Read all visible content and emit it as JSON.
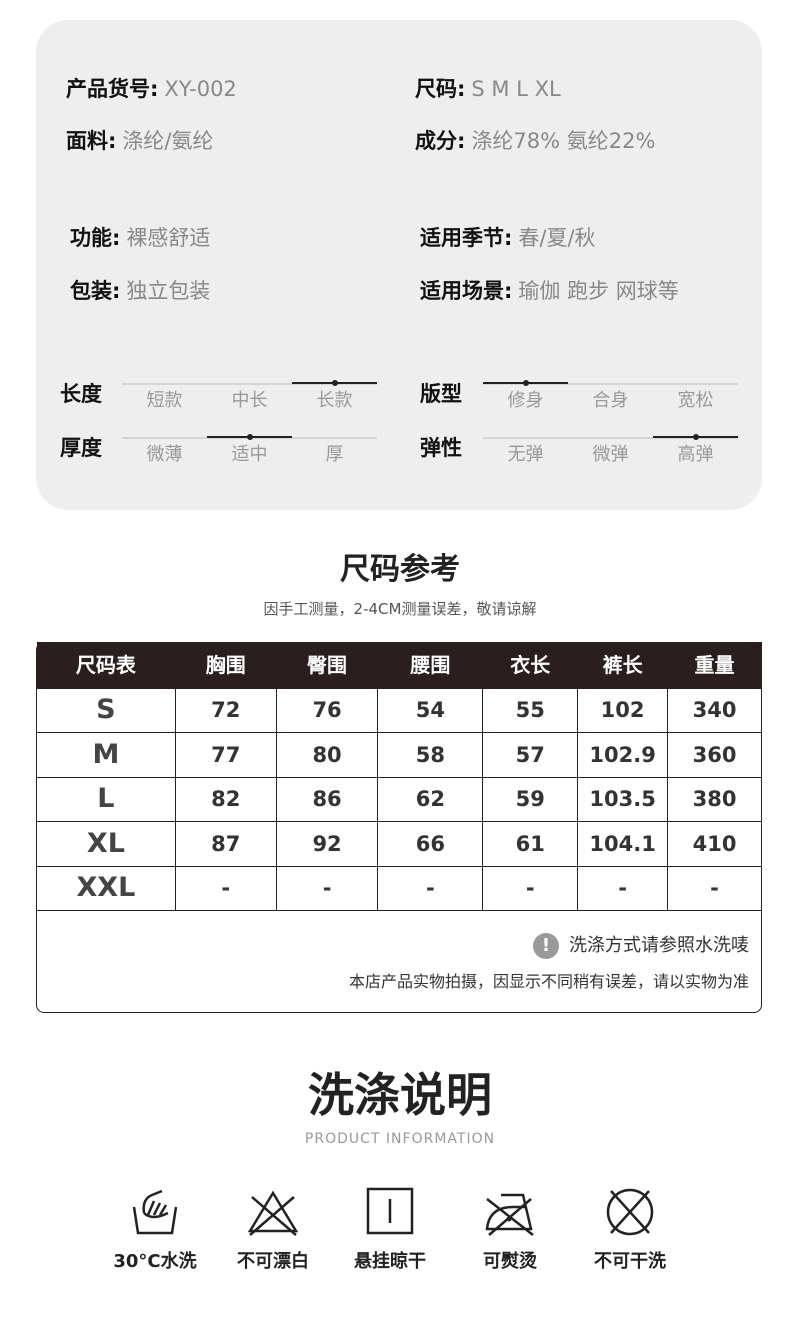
{
  "specs": [
    {
      "key": "产品货号:",
      "value": "XY-002"
    },
    {
      "key": "尺码:",
      "value": "S M L XL"
    },
    {
      "key": "面料:",
      "value": "涤纶/氨纶"
    },
    {
      "key": "成分:",
      "value": "涤纶78% 氨纶22%"
    },
    {
      "key": "功能:",
      "value": "裸感舒适"
    },
    {
      "key": "适用季节:",
      "value": "春/夏/秋"
    },
    {
      "key": "包装:",
      "value": "独立包装"
    },
    {
      "key": "适用场景:",
      "value": "瑜伽 跑步 网球等"
    }
  ],
  "scales": [
    {
      "label": "长度",
      "options": [
        "短款",
        "中长",
        "长款"
      ],
      "selected": 2
    },
    {
      "label": "版型",
      "options": [
        "修身",
        "合身",
        "宽松"
      ],
      "selected": 0
    },
    {
      "label": "厚度",
      "options": [
        "微薄",
        "适中",
        "厚"
      ],
      "selected": 1
    },
    {
      "label": "弹性",
      "options": [
        "无弹",
        "微弹",
        "高弹"
      ],
      "selected": 2
    }
  ],
  "size_section": {
    "title": "尺码参考",
    "subtitle": "因手工测量，2-4CM测量误差，敬请谅解"
  },
  "size_table": {
    "headers": [
      "尺码表",
      "胸围",
      "臀围",
      "腰围",
      "衣长",
      "裤长",
      "重量"
    ],
    "rows": [
      [
        "S",
        "72",
        "76",
        "54",
        "55",
        "102",
        "340"
      ],
      [
        "M",
        "77",
        "80",
        "58",
        "57",
        "102.9",
        "360"
      ],
      [
        "L",
        "82",
        "86",
        "62",
        "59",
        "103.5",
        "380"
      ],
      [
        "XL",
        "87",
        "92",
        "66",
        "61",
        "104.1",
        "410"
      ],
      [
        "XXL",
        "-",
        "-",
        "-",
        "-",
        "-",
        "-"
      ]
    ]
  },
  "notes": {
    "wash": "洗涤方式请参照水洗唛",
    "disclaimer": "本店产品实物拍摄，因显示不同稍有误差，请以实物为准",
    "icon": "exclamation-icon"
  },
  "care_section": {
    "title": "洗涤说明",
    "subtitle": "PRODUCT INFORMATION"
  },
  "care": [
    {
      "icon": "hand-wash-icon",
      "label": "30°C水洗"
    },
    {
      "icon": "no-bleach-icon",
      "label": "不可漂白"
    },
    {
      "icon": "hang-dry-icon",
      "label": "悬挂晾干"
    },
    {
      "icon": "iron-icon",
      "label": "可熨烫"
    },
    {
      "icon": "no-dry-clean-icon",
      "label": "不可干洗"
    }
  ],
  "colors": {
    "card_bg": "#eeeeee",
    "table_header": "#2b1e1e"
  }
}
